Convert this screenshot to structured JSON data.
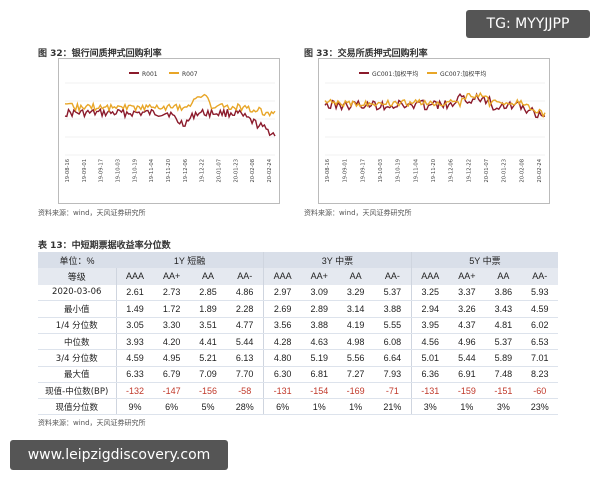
{
  "watermark_top": "TG: MYYJJPP",
  "watermark_bottom": "www.leipzigdiscovery.com",
  "fig32": {
    "title": "图 32：银行间质押式回购利率",
    "source": "资料来源：wind，天风证券研究所",
    "legend": [
      "R001",
      "R007"
    ],
    "colors": {
      "R001": "#8b1a2b",
      "R007": "#e8a628"
    },
    "x_ticks": [
      "19-08-16",
      "19-09-01",
      "19-09-17",
      "19-10-03",
      "19-10-19",
      "19-11-04",
      "19-11-20",
      "19-12-06",
      "19-12-22",
      "20-01-07",
      "20-01-23",
      "20-02-08",
      "20-02-24"
    ]
  },
  "fig33": {
    "title": "图 33：交易所质押式回购利率",
    "source": "资料来源：wind，天风证券研究所",
    "legend": [
      "GC001:加权平均",
      "GC007:加权平均"
    ],
    "colors": {
      "GC001": "#8b1a2b",
      "GC007": "#e8a628"
    },
    "x_ticks": [
      "19-08-16",
      "19-09-01",
      "19-09-17",
      "19-10-03",
      "19-10-19",
      "19-11-04",
      "19-11-20",
      "19-12-06",
      "19-12-22",
      "20-01-07",
      "20-01-23",
      "20-02-08",
      "20-02-24"
    ]
  },
  "table": {
    "title": "表 13：中短期票据收益率分位数",
    "source": "资料来源：wind，天风证券研究所",
    "unit_label": "单位：%",
    "grade_label": "等级",
    "groups": [
      "1Y 短融",
      "3Y 中票",
      "5Y 中票"
    ],
    "ratings": [
      "AAA",
      "AA+",
      "AA",
      "AA-",
      "AAA",
      "AA+",
      "AA",
      "AA-",
      "AAA",
      "AA+",
      "AA",
      "AA-"
    ],
    "rows": [
      {
        "label": "2020-03-06",
        "values": [
          "2.61",
          "2.73",
          "2.85",
          "4.86",
          "2.97",
          "3.09",
          "3.29",
          "5.37",
          "3.25",
          "3.37",
          "3.86",
          "5.93"
        ]
      },
      {
        "label": "最小值",
        "values": [
          "1.49",
          "1.72",
          "1.89",
          "2.28",
          "2.69",
          "2.89",
          "3.14",
          "3.88",
          "2.94",
          "3.26",
          "3.43",
          "4.59"
        ]
      },
      {
        "label": "1/4 分位数",
        "values": [
          "3.05",
          "3.30",
          "3.51",
          "4.77",
          "3.56",
          "3.88",
          "4.19",
          "5.55",
          "3.95",
          "4.37",
          "4.81",
          "6.02"
        ]
      },
      {
        "label": "中位数",
        "values": [
          "3.93",
          "4.20",
          "4.41",
          "5.44",
          "4.28",
          "4.63",
          "4.98",
          "6.08",
          "4.56",
          "4.96",
          "5.37",
          "6.53"
        ]
      },
      {
        "label": "3/4 分位数",
        "values": [
          "4.59",
          "4.95",
          "5.21",
          "6.13",
          "4.80",
          "5.19",
          "5.56",
          "6.64",
          "5.01",
          "5.44",
          "5.89",
          "7.01"
        ]
      },
      {
        "label": "最大值",
        "values": [
          "6.33",
          "6.79",
          "7.09",
          "7.70",
          "6.30",
          "6.81",
          "7.27",
          "7.93",
          "6.36",
          "6.91",
          "7.48",
          "8.23"
        ]
      },
      {
        "label": "现值-中位数(BP)",
        "values": [
          "-132",
          "-147",
          "-156",
          "-58",
          "-131",
          "-154",
          "-169",
          "-71",
          "-131",
          "-159",
          "-151",
          "-60"
        ]
      },
      {
        "label": "现值分位数",
        "values": [
          "9%",
          "6%",
          "5%",
          "28%",
          "6%",
          "1%",
          "1%",
          "21%",
          "3%",
          "1%",
          "3%",
          "23%"
        ]
      }
    ]
  }
}
